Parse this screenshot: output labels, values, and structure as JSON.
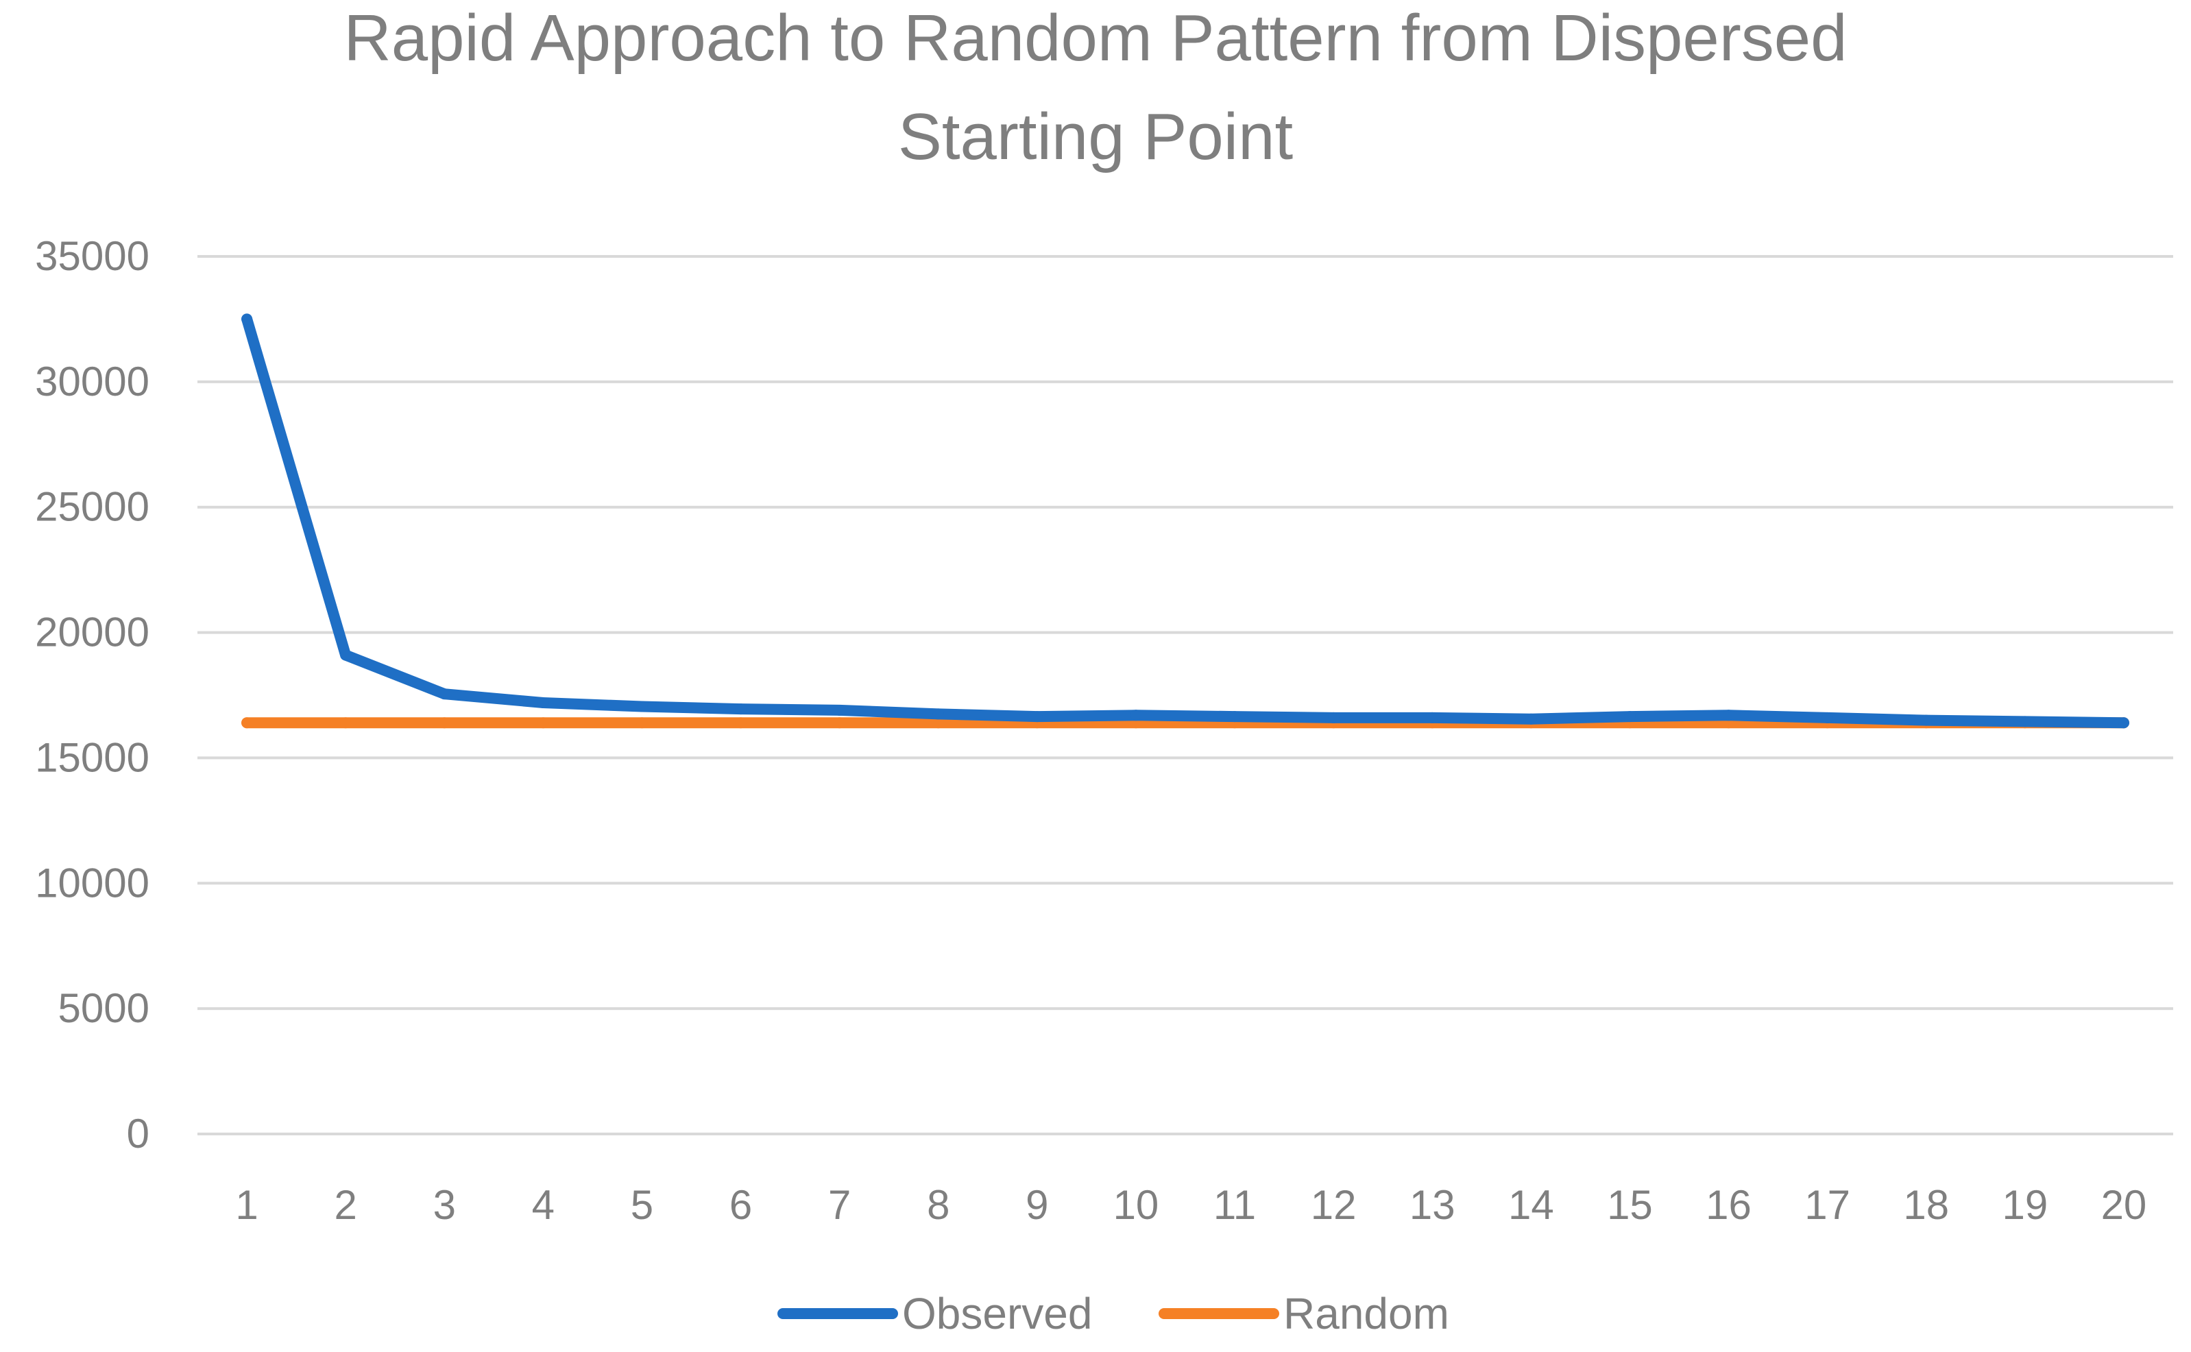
{
  "chart_data": {
    "type": "line",
    "title": [
      "Rapid Approach to Random Pattern from Dispersed",
      "Starting Point"
    ],
    "xlabel": "",
    "ylabel": "",
    "categories": [
      "1",
      "2",
      "3",
      "4",
      "5",
      "6",
      "7",
      "8",
      "9",
      "10",
      "11",
      "12",
      "13",
      "14",
      "15",
      "16",
      "17",
      "18",
      "19",
      "20"
    ],
    "ylim": [
      0,
      35000
    ],
    "yticks": [
      "0",
      "5000",
      "10000",
      "15000",
      "20000",
      "25000",
      "30000",
      "35000"
    ],
    "grid": true,
    "legend_position": "bottom",
    "series": [
      {
        "name": "Observed",
        "color": "#1f6fc5",
        "values": [
          32500,
          19100,
          17550,
          17200,
          17050,
          16950,
          16900,
          16750,
          16650,
          16700,
          16650,
          16600,
          16600,
          16550,
          16650,
          16700,
          16600,
          16500,
          16450,
          16400
        ]
      },
      {
        "name": "Random",
        "color": "#f58025",
        "values": [
          16400,
          16400,
          16400,
          16400,
          16400,
          16400,
          16400,
          16400,
          16400,
          16400,
          16400,
          16400,
          16400,
          16400,
          16400,
          16400,
          16400,
          16400,
          16400,
          16400
        ]
      }
    ]
  }
}
